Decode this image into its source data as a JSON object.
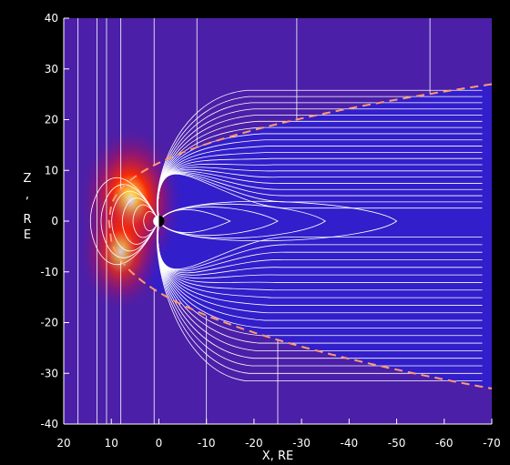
{
  "chart_data": {
    "type": "heatmap",
    "title": "",
    "xlabel": "X, RE",
    "ylabel_chars": [
      "Z",
      ",",
      "R",
      "E"
    ],
    "xlim": [
      20,
      -70
    ],
    "ylim": [
      -40,
      40
    ],
    "x_ticks": [
      20,
      10,
      0,
      -10,
      -20,
      -30,
      -40,
      -50,
      -60,
      -70
    ],
    "y_ticks": [
      40,
      30,
      20,
      10,
      0,
      -10,
      -20,
      -30,
      -40
    ],
    "colors": {
      "background": "#000000",
      "plasma_field": "#4b1fa8",
      "tail_core": "#2a1fd6",
      "bow_hot": "#ff2a00",
      "bow_warm": "#ff8c00",
      "field_lines": "#ffffff",
      "magnetopause": "#ff9a70",
      "axis_text": "#ffffff"
    },
    "magnetopause": {
      "style": "dashed",
      "subsolar_x": 10.5,
      "tail_end_x": -70,
      "north_z_at_end": 27,
      "south_z_at_end": -33
    },
    "field_lines": {
      "earth_x": 0,
      "earth_z": 0,
      "open_vertical_x": [
        17,
        13,
        11,
        8,
        1,
        -8,
        -29,
        -57
      ],
      "south_vertical_x": [
        11,
        8,
        1,
        -10,
        -25
      ],
      "tail_closed_loop_ends_x": [
        -15,
        -25,
        -35,
        -50
      ],
      "lobe_line_count": 20
    },
    "earth": {
      "x": 0,
      "z": 0,
      "dayside": "white",
      "nightside": "black"
    }
  }
}
